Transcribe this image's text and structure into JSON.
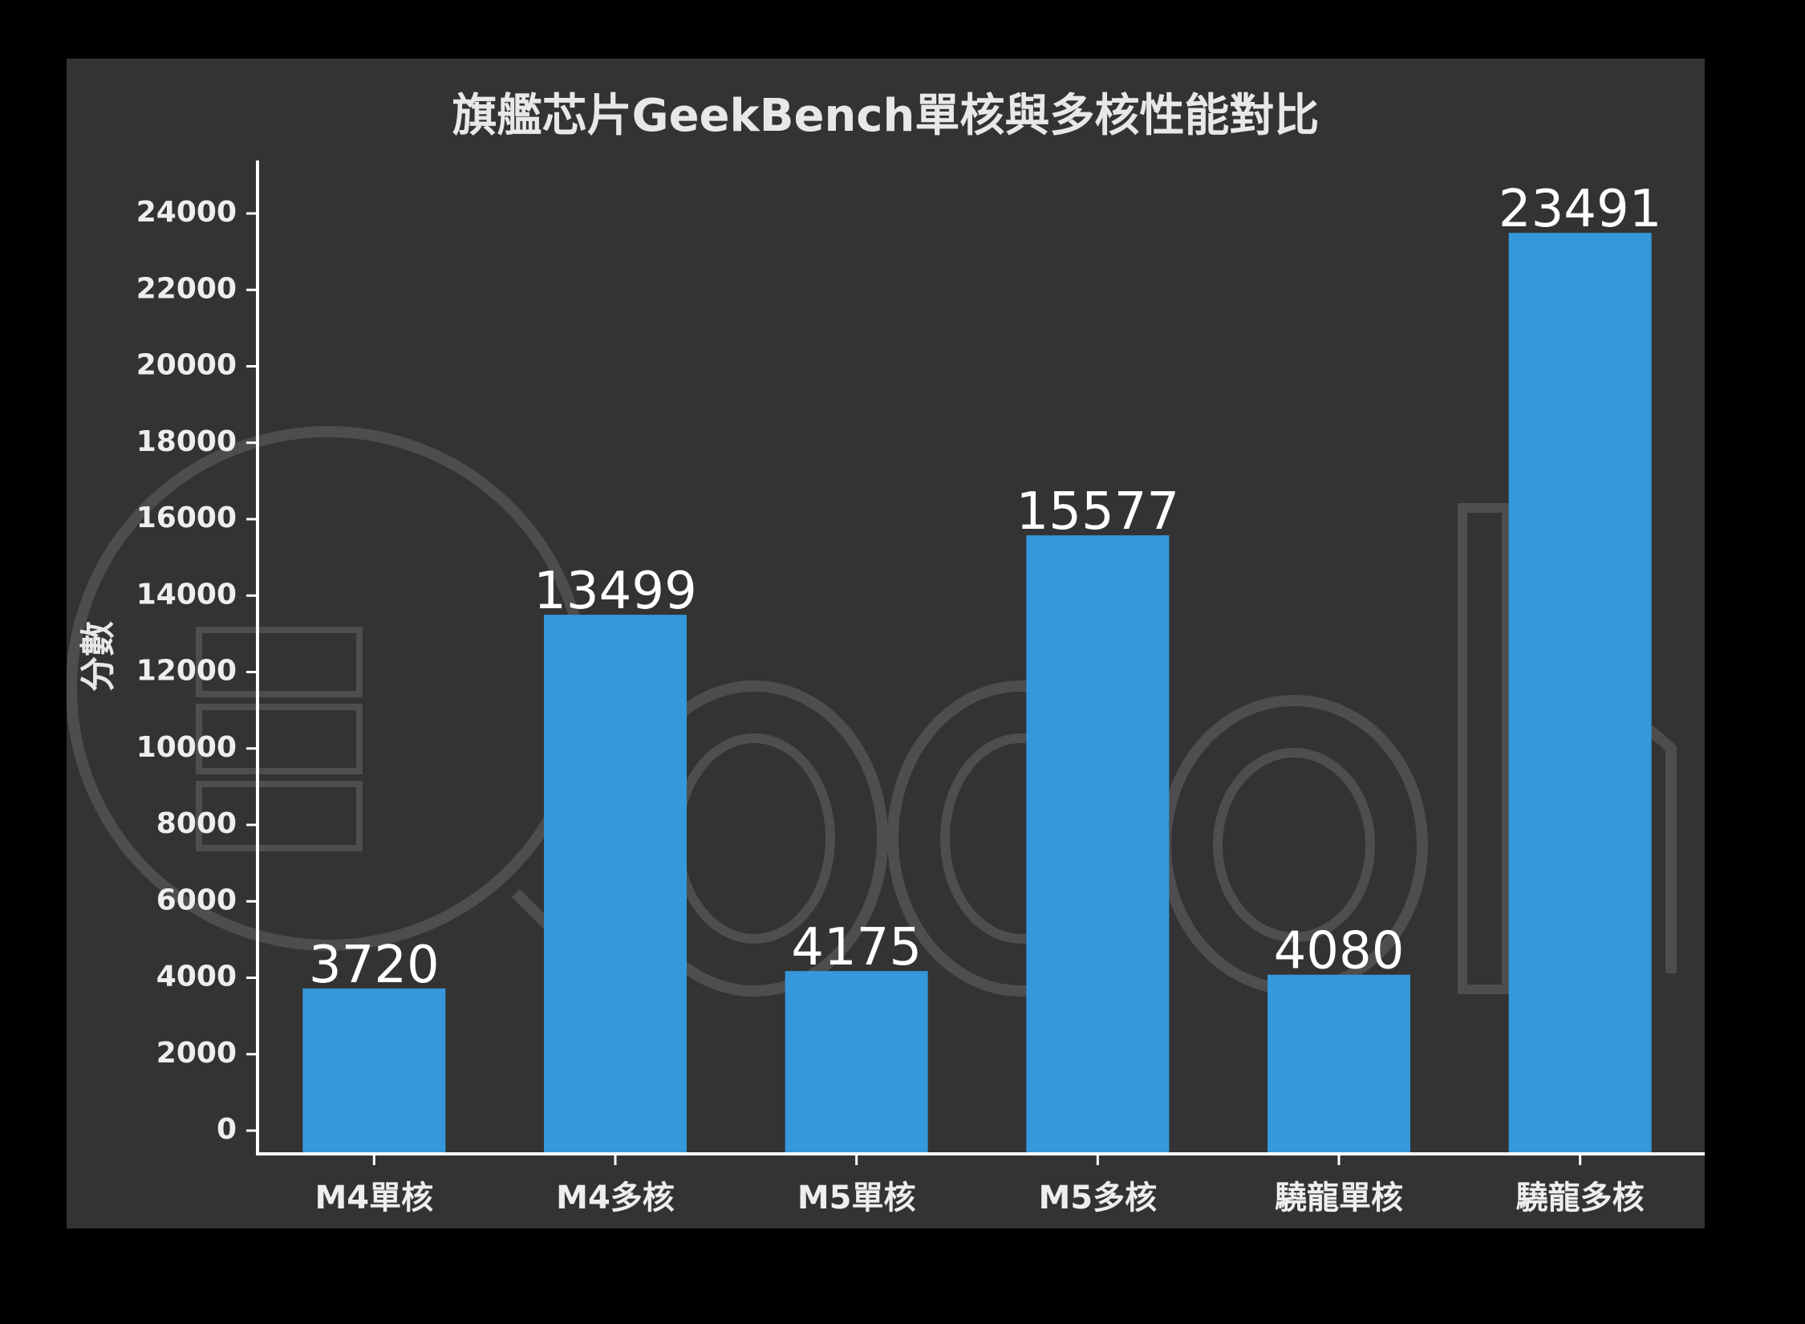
{
  "chart_data": {
    "type": "bar",
    "title": "旗艦芯片GeekBench單核與多核性能對比",
    "xlabel": "",
    "ylabel": "分數",
    "categories": [
      "M4單核",
      "M4多核",
      "M5單核",
      "M5多核",
      "驍龍單核",
      "驍龍多核"
    ],
    "values": [
      3720,
      13499,
      4175,
      15577,
      4080,
      23491
    ],
    "ylim": [
      0,
      24500
    ],
    "yticks": [
      0,
      2000,
      4000,
      6000,
      8000,
      10000,
      12000,
      14000,
      16000,
      18000,
      20000,
      22000,
      24000
    ],
    "grid": false,
    "bar_color": "#3498db",
    "background_color": "#333333",
    "data_labels": true
  },
  "watermark": {
    "text": "Qooah"
  }
}
